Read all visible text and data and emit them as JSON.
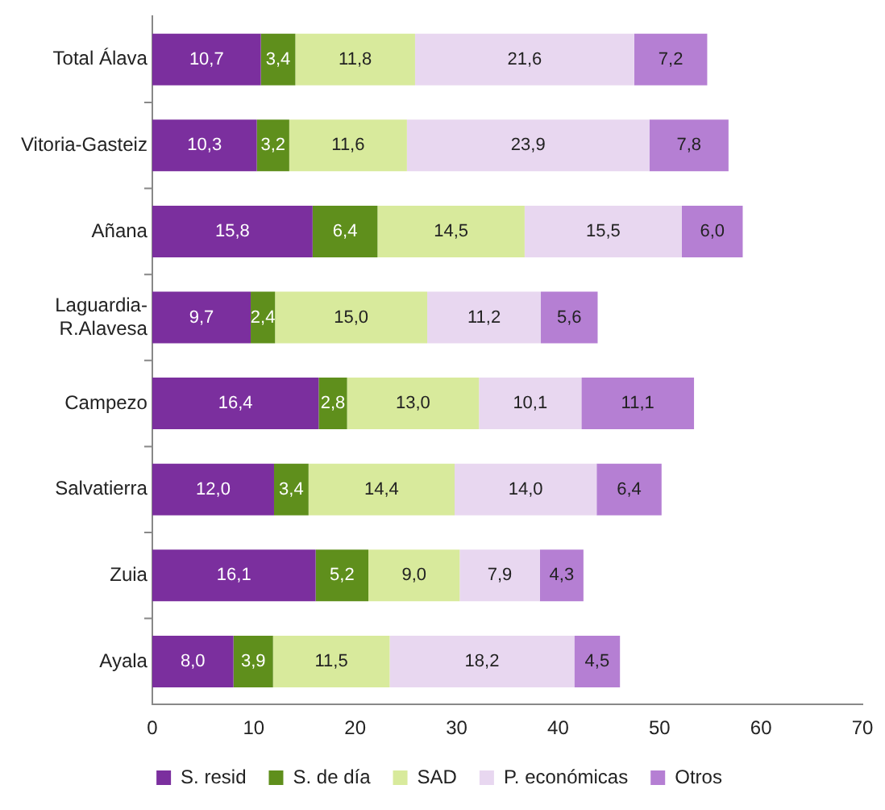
{
  "chart_data": {
    "type": "bar",
    "orientation": "horizontal",
    "stacked": true,
    "categories": [
      "Total Álava",
      "Vitoria-Gasteiz",
      "Añana",
      "Laguardia-R.Alavesa",
      "Campezo",
      "Salvatierra",
      "Zuia",
      "Ayala"
    ],
    "series": [
      {
        "name": "S. resid",
        "color": "#7b2f9e",
        "values": [
          10.7,
          10.3,
          15.8,
          9.7,
          16.4,
          12.0,
          16.1,
          8.0
        ],
        "value_labels": [
          "10,7",
          "10,3",
          "15,8",
          "9,7",
          "16,4",
          "12,0",
          "16,1",
          "8,0"
        ]
      },
      {
        "name": "S. de día",
        "color": "#5f8f1c",
        "values": [
          3.4,
          3.2,
          6.4,
          2.4,
          2.8,
          3.4,
          5.2,
          3.9
        ],
        "value_labels": [
          "3,4",
          "3,2",
          "6,4",
          "2,4",
          "2,8",
          "3,4",
          "5,2",
          "3,9"
        ]
      },
      {
        "name": "SAD",
        "color": "#d8ea9c",
        "values": [
          11.8,
          11.6,
          14.5,
          15.0,
          13.0,
          14.4,
          9.0,
          11.5
        ],
        "value_labels": [
          "11,8",
          "11,6",
          "14,5",
          "15,0",
          "13,0",
          "14,4",
          "9,0",
          "11,5"
        ]
      },
      {
        "name": "P. económicas",
        "color": "#e8d7f0",
        "values": [
          21.6,
          23.9,
          15.5,
          11.2,
          10.1,
          14.0,
          7.9,
          18.2
        ],
        "value_labels": [
          "21,6",
          "23,9",
          "15,5",
          "11,2",
          "10,1",
          "14,0",
          "7,9",
          "18,2"
        ]
      },
      {
        "name": "Otros",
        "color": "#b57fd3",
        "values": [
          7.2,
          7.8,
          6.0,
          5.6,
          11.1,
          6.4,
          4.3,
          4.5
        ],
        "value_labels": [
          "7,2",
          "7,8",
          "6,0",
          "5,6",
          "11,1",
          "6,4",
          "4,3",
          "4,5"
        ]
      }
    ],
    "xlim": [
      0,
      70
    ],
    "xticks": [
      0,
      10,
      20,
      30,
      40,
      50,
      60,
      70
    ],
    "grid": false,
    "legend": "bottom"
  }
}
